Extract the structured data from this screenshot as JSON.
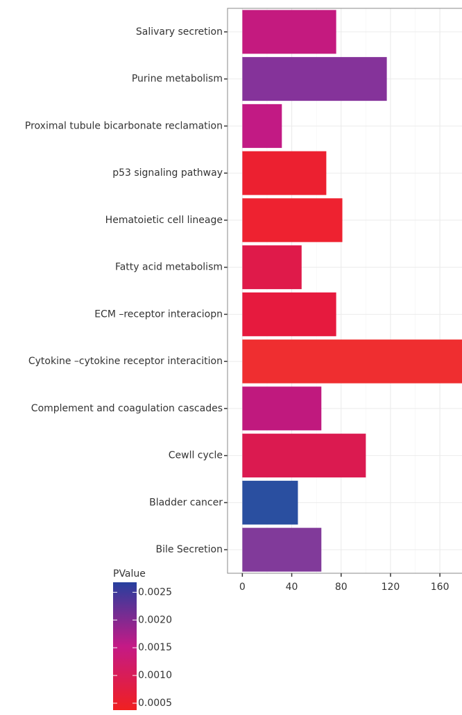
{
  "chart_data": {
    "type": "bar",
    "orientation": "horizontal",
    "categories": [
      "Salivary secretion",
      "Purine metabolism",
      "Proximal tubule bicarbonate reclamation",
      "p53 signaling pathway",
      "Hematoietic cell lineage",
      "Fatty acid metabolism",
      "ECM –receptor interaciopn",
      "Cytokine –cytokine  receptor interacition",
      "Complement and coagulation cascades",
      "Cewll cycle",
      "Bladder cancer",
      "Bile Secretion"
    ],
    "values": [
      76,
      117,
      32,
      68,
      81,
      48,
      76,
      192,
      64,
      100,
      45,
      64
    ],
    "colors": [
      "#c41a7f",
      "#85339a",
      "#c21a84",
      "#ec2030",
      "#ee2230",
      "#df1a4a",
      "#e61a3e",
      "#ef2e30",
      "#c0197e",
      "#db1a50",
      "#2a4fa0",
      "#813a9a"
    ],
    "xlim": [
      -12,
      197
    ],
    "xticks": [
      0,
      40,
      80,
      120,
      160
    ],
    "grid": true,
    "legend": {
      "title": "PValue",
      "lim": [
        0.000375,
        0.00268
      ],
      "colors": [
        "#f02020",
        "#c41a86",
        "#263f9e"
      ],
      "ticks": [
        0.0025,
        {
          "value": 0.002,
          "label": "0.0020"
        },
        0.0015,
        {
          "value": 0.001,
          "label": "0.0010"
        },
        0.0005
      ]
    }
  }
}
